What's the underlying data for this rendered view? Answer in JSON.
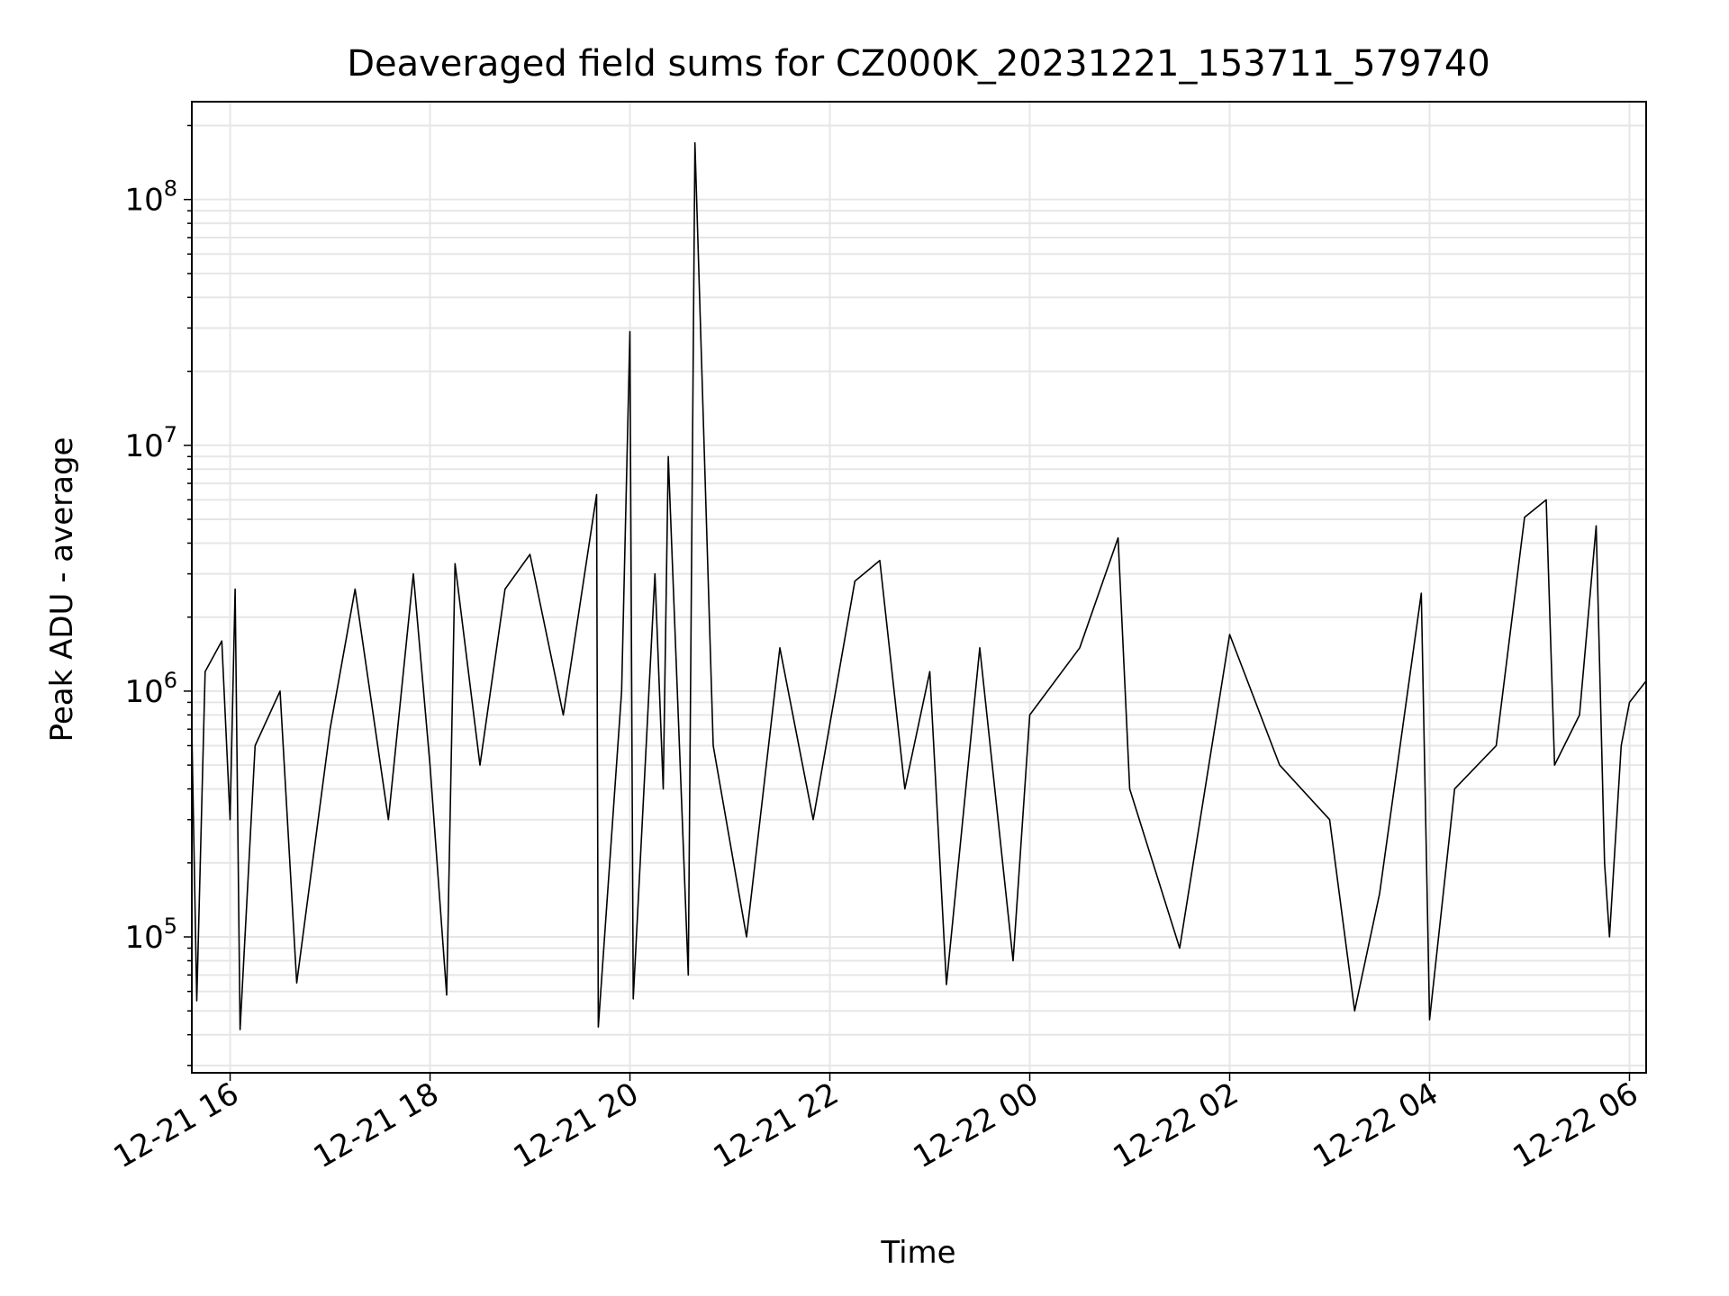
{
  "chart_data": {
    "type": "line",
    "title": "Deaveraged field sums for CZ000K_20231221_153711_579740",
    "xlabel": "Time",
    "ylabel": "Peak ADU - average",
    "y_scale": "log",
    "ylim": [
      28000,
      250000000
    ],
    "xlim": [
      "2023-12-21 15:37",
      "2023-12-22 06:10"
    ],
    "grid": true,
    "line_color": "#000000",
    "grid_color": "#e6e6e6",
    "x_ticks": [
      {
        "t": "2023-12-21 16:00",
        "label": "12-21 16"
      },
      {
        "t": "2023-12-21 18:00",
        "label": "12-21 18"
      },
      {
        "t": "2023-12-21 20:00",
        "label": "12-21 20"
      },
      {
        "t": "2023-12-21 22:00",
        "label": "12-21 22"
      },
      {
        "t": "2023-12-22 00:00",
        "label": "12-22 00"
      },
      {
        "t": "2023-12-22 02:00",
        "label": "12-22 02"
      },
      {
        "t": "2023-12-22 04:00",
        "label": "12-22 04"
      },
      {
        "t": "2023-12-22 06:00",
        "label": "12-22 06"
      }
    ],
    "y_ticks": [
      {
        "v": 100000,
        "base": "10",
        "exp": "5"
      },
      {
        "v": 1000000,
        "base": "10",
        "exp": "6"
      },
      {
        "v": 10000000,
        "base": "10",
        "exp": "7"
      },
      {
        "v": 100000000,
        "base": "10",
        "exp": "8"
      }
    ],
    "series": [
      {
        "points": [
          [
            "2023-12-21 15:37",
            700000
          ],
          [
            "2023-12-21 15:40",
            55000
          ],
          [
            "2023-12-21 15:45",
            1200000
          ],
          [
            "2023-12-21 15:55",
            1600000
          ],
          [
            "2023-12-21 16:00",
            300000
          ],
          [
            "2023-12-21 16:03",
            2600000
          ],
          [
            "2023-12-21 16:06",
            42000
          ],
          [
            "2023-12-21 16:15",
            600000
          ],
          [
            "2023-12-21 16:30",
            1000000
          ],
          [
            "2023-12-21 16:40",
            65000
          ],
          [
            "2023-12-21 17:00",
            700000
          ],
          [
            "2023-12-21 17:15",
            2600000
          ],
          [
            "2023-12-21 17:35",
            300000
          ],
          [
            "2023-12-21 17:50",
            3000000
          ],
          [
            "2023-12-21 18:00",
            500000
          ],
          [
            "2023-12-21 18:10",
            58000
          ],
          [
            "2023-12-21 18:15",
            3300000
          ],
          [
            "2023-12-21 18:30",
            500000
          ],
          [
            "2023-12-21 18:45",
            2600000
          ],
          [
            "2023-12-21 19:00",
            3600000
          ],
          [
            "2023-12-21 19:20",
            800000
          ],
          [
            "2023-12-21 19:40",
            6300000
          ],
          [
            "2023-12-21 19:41",
            43000
          ],
          [
            "2023-12-21 19:55",
            1000000
          ],
          [
            "2023-12-21 20:00",
            29000000
          ],
          [
            "2023-12-21 20:02",
            56000
          ],
          [
            "2023-12-21 20:15",
            3000000
          ],
          [
            "2023-12-21 20:20",
            400000
          ],
          [
            "2023-12-21 20:23",
            9000000
          ],
          [
            "2023-12-21 20:35",
            70000
          ],
          [
            "2023-12-21 20:39",
            170000000
          ],
          [
            "2023-12-21 20:50",
            600000
          ],
          [
            "2023-12-21 21:10",
            100000
          ],
          [
            "2023-12-21 21:30",
            1500000
          ],
          [
            "2023-12-21 21:50",
            300000
          ],
          [
            "2023-12-21 22:15",
            2800000
          ],
          [
            "2023-12-21 22:30",
            3400000
          ],
          [
            "2023-12-21 22:45",
            400000
          ],
          [
            "2023-12-21 23:00",
            1200000
          ],
          [
            "2023-12-21 23:10",
            64000
          ],
          [
            "2023-12-21 23:30",
            1500000
          ],
          [
            "2023-12-21 23:50",
            80000
          ],
          [
            "2023-12-22 00:00",
            800000
          ],
          [
            "2023-12-22 00:30",
            1500000
          ],
          [
            "2023-12-22 00:53",
            4200000
          ],
          [
            "2023-12-22 01:00",
            400000
          ],
          [
            "2023-12-22 01:30",
            90000
          ],
          [
            "2023-12-22 02:00",
            1700000
          ],
          [
            "2023-12-22 02:30",
            500000
          ],
          [
            "2023-12-22 03:00",
            300000
          ],
          [
            "2023-12-22 03:15",
            50000
          ],
          [
            "2023-12-22 03:30",
            150000
          ],
          [
            "2023-12-22 03:55",
            2500000
          ],
          [
            "2023-12-22 04:00",
            46000
          ],
          [
            "2023-12-22 04:15",
            400000
          ],
          [
            "2023-12-22 04:40",
            600000
          ],
          [
            "2023-12-22 04:57",
            5100000
          ],
          [
            "2023-12-22 05:10",
            6000000
          ],
          [
            "2023-12-22 05:15",
            500000
          ],
          [
            "2023-12-22 05:30",
            800000
          ],
          [
            "2023-12-22 05:40",
            4700000
          ],
          [
            "2023-12-22 05:45",
            200000
          ],
          [
            "2023-12-22 05:48",
            100000
          ],
          [
            "2023-12-22 05:55",
            600000
          ],
          [
            "2023-12-22 06:00",
            900000
          ],
          [
            "2023-12-22 06:10",
            1100000
          ]
        ]
      }
    ]
  }
}
